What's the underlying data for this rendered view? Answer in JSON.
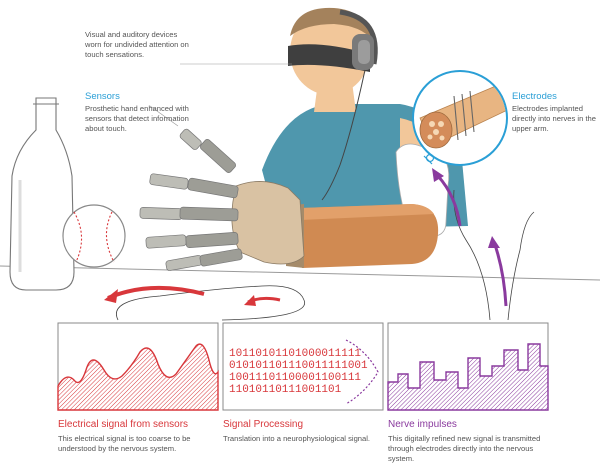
{
  "labels": {
    "goggles_note": "Visual and auditory devices worn for undivided attention on touch sensations.",
    "sensors": {
      "title": "Sensors",
      "text": "Prosthetic hand enhanced with sensors that detect information about touch."
    },
    "electrodes": {
      "title": "Electrodes",
      "text": "Electrodes implanted directly into nerves in the upper arm."
    }
  },
  "panels": [
    {
      "title": "Electrical signal from sensors",
      "text": "This electrical signal is too coarse to be understood by the nervous system.",
      "color": "#d8373b"
    },
    {
      "title": "Signal Processing",
      "text": "Translation into a neurophysiological signal.",
      "color": "#d8373b",
      "binary_lines": [
        "10110101101000011111",
        "010101101110011111001",
        "10011101100001100111",
        "11010110111001101"
      ]
    },
    {
      "title": "Nerve impulses",
      "text": "This digitally refined new signal is transmitted through electrodes directly into the nervous system.",
      "color": "#8a3a9e"
    }
  ],
  "colors": {
    "accent_blue": "#2a9fd6",
    "signal_red": "#d8373b",
    "impulse_purple": "#8a3a9e",
    "skin": "#f2c79a",
    "shirt": "#4f97ad",
    "prosthetic_metal": "#bdbdb6",
    "prosthetic_tan": "#d9c2a3"
  }
}
